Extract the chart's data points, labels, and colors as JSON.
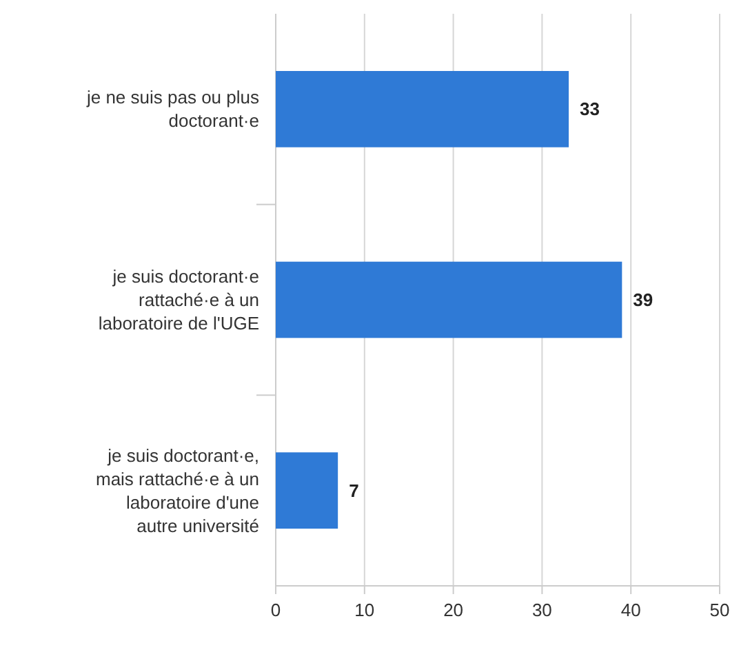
{
  "chart_data": {
    "type": "bar",
    "orientation": "horizontal",
    "categories": [
      "je ne suis pas ou plus doctorant·e",
      "je suis doctorant·e rattaché·e à un laboratoire de l'UGE",
      "je suis doctorant·e, mais rattaché·e à un laboratoire d'une autre université"
    ],
    "values": [
      33,
      39,
      7
    ],
    "color": "#2f7ad6",
    "xlim": [
      0,
      50
    ],
    "xticks": [
      0,
      10,
      20,
      30,
      40,
      50
    ],
    "grid": "x",
    "data_labels": true
  }
}
